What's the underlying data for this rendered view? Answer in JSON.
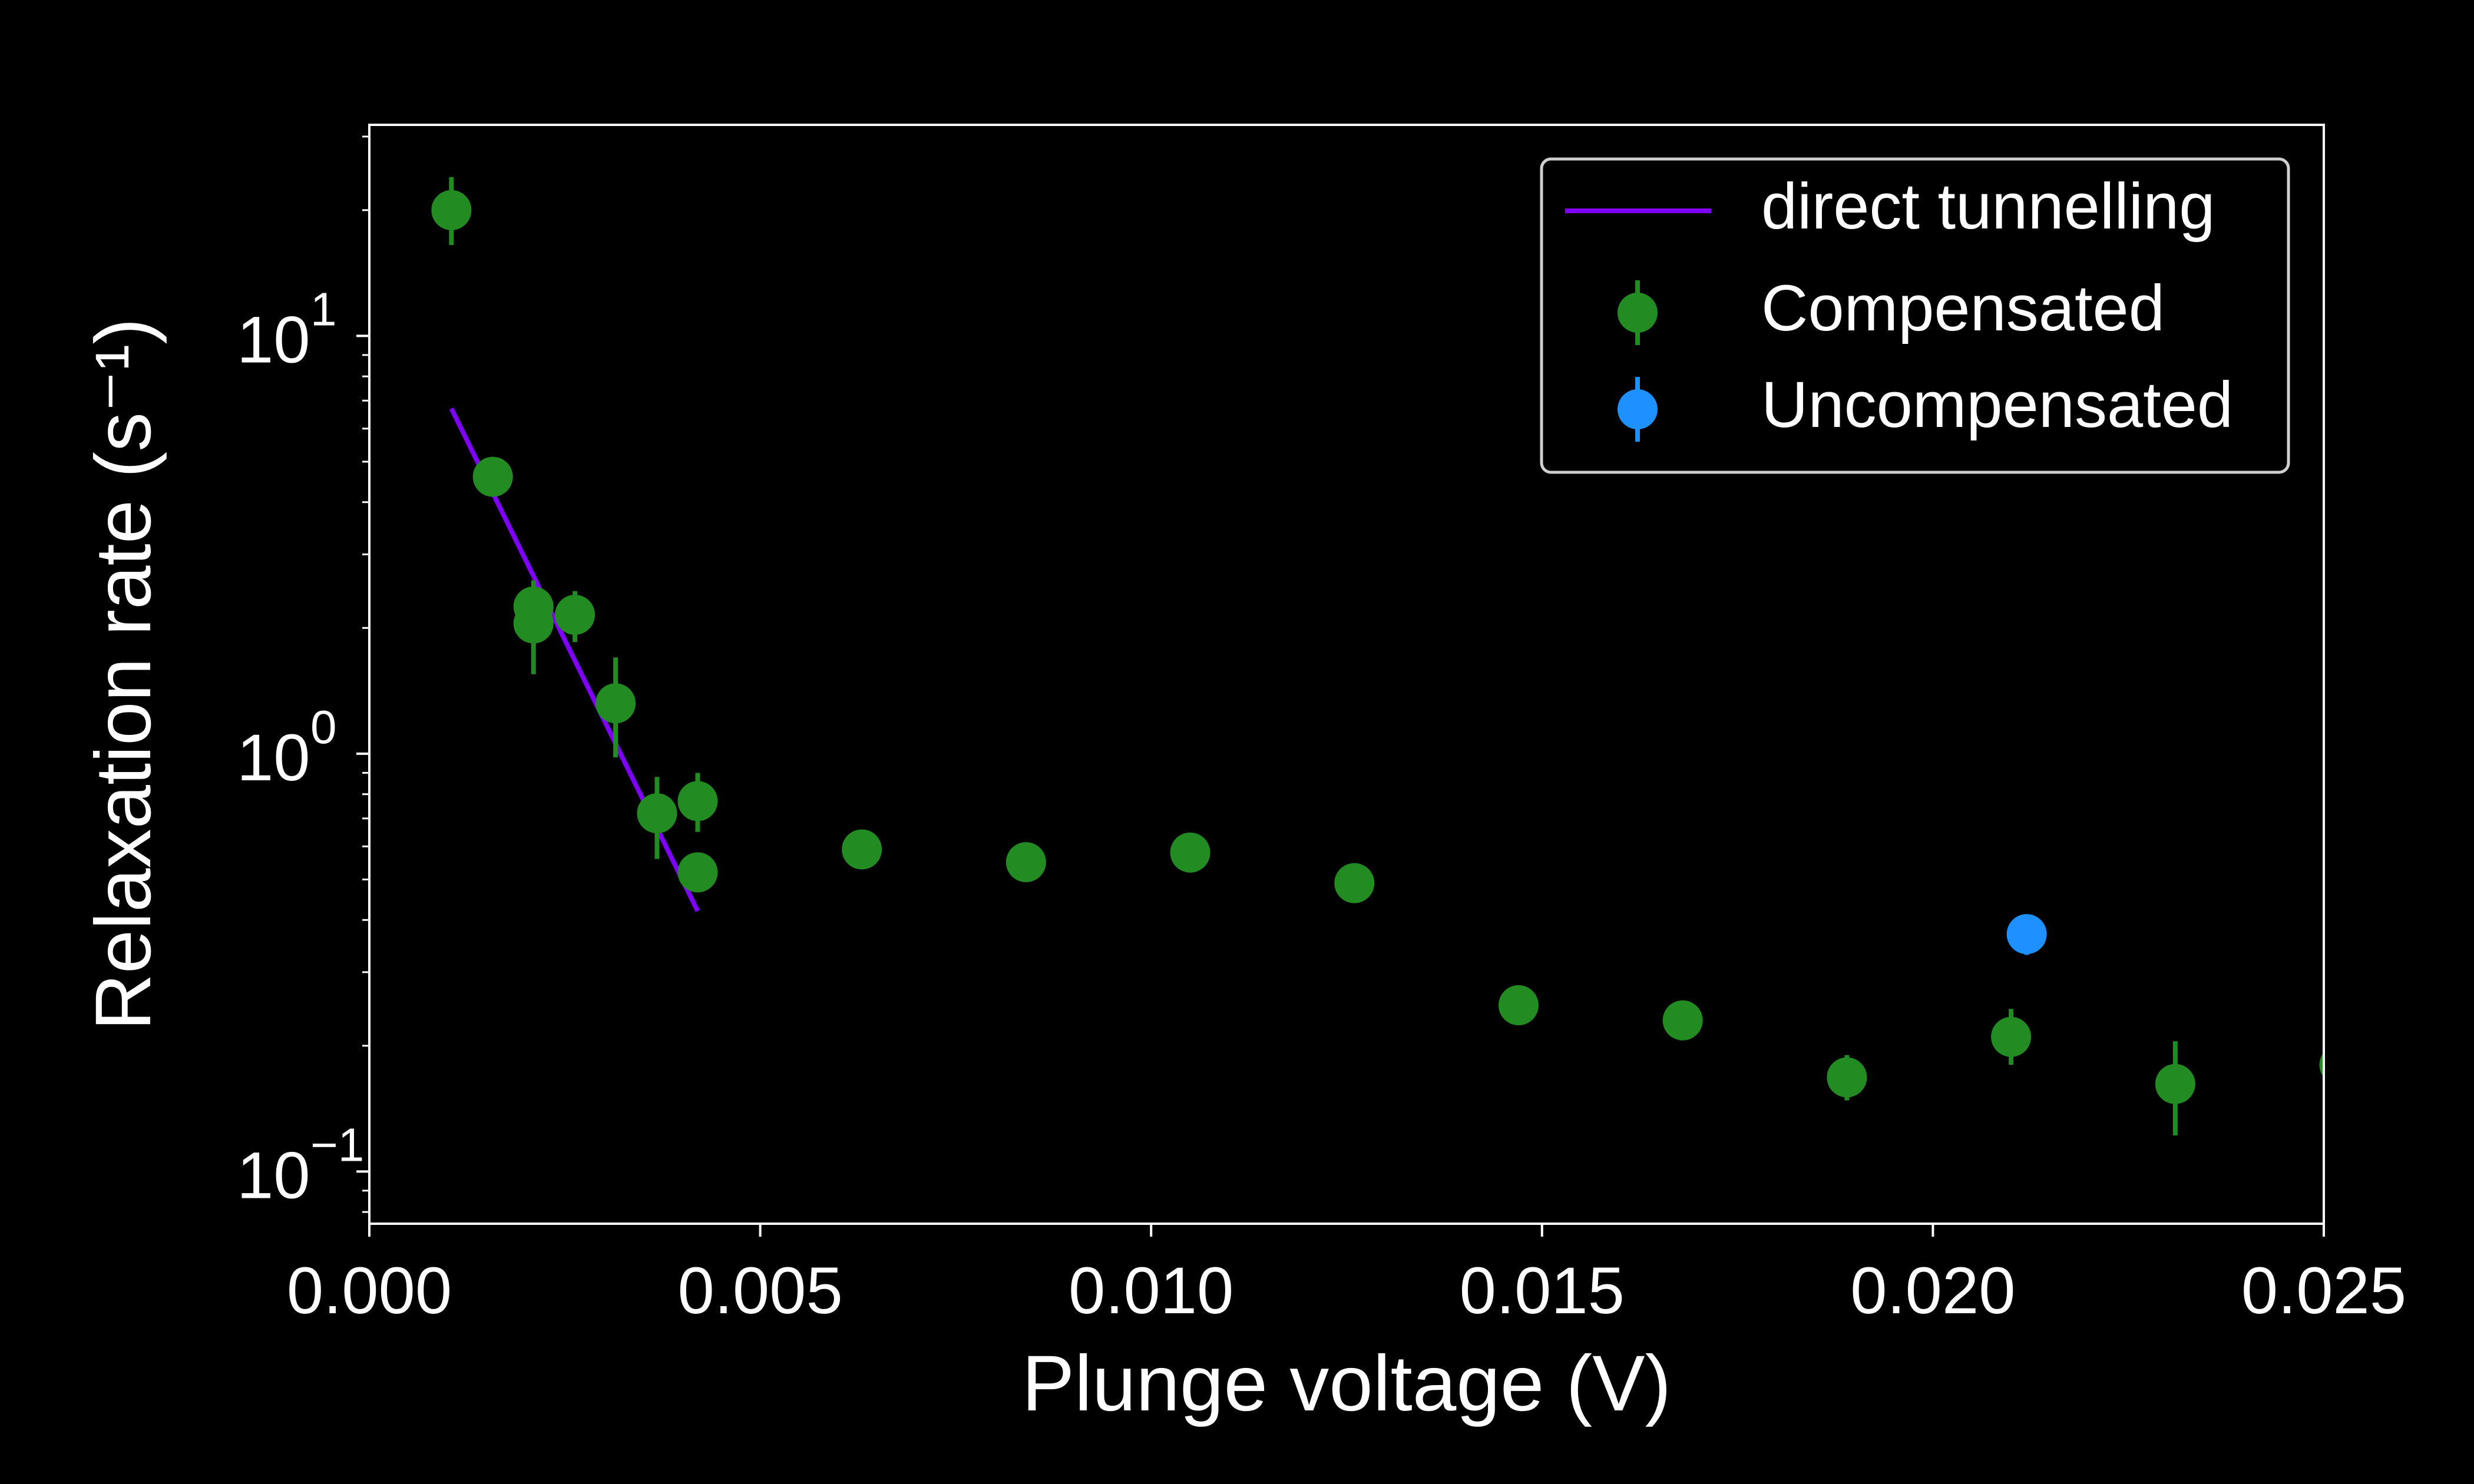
{
  "chart_data": {
    "type": "scatter",
    "xlabel": "Plunge voltage (V)",
    "ylabel": "Relaxation rate (s⁻¹)",
    "xlim": [
      0.0,
      0.025
    ],
    "ylim": [
      0.075,
      32
    ],
    "yscale": "log",
    "grid": false,
    "legend_position": "top-right",
    "background": "#000000",
    "x_ticks": [
      {
        "value": 0.0,
        "label": "0.000"
      },
      {
        "value": 0.005,
        "label": "0.005"
      },
      {
        "value": 0.01,
        "label": "0.010"
      },
      {
        "value": 0.015,
        "label": "0.015"
      },
      {
        "value": 0.02,
        "label": "0.020"
      },
      {
        "value": 0.025,
        "label": "0.025"
      }
    ],
    "y_ticks": [
      {
        "value": 0.1,
        "base": "10",
        "exp": "−1"
      },
      {
        "value": 1,
        "base": "10",
        "exp": "0"
      },
      {
        "value": 10,
        "base": "10",
        "exp": "1"
      }
    ],
    "fit": {
      "name": "direct tunnelling",
      "color": "#7f00ff",
      "x": [
        0.00105,
        0.0042
      ],
      "y": [
        6.7,
        0.42
      ]
    },
    "series": [
      {
        "name": "Compensated",
        "color": "#228b22",
        "points": [
          {
            "x": 0.00105,
            "y": 20.0,
            "yerr_lo": 16.5,
            "yerr_hi": 24.0
          },
          {
            "x": 0.00158,
            "y": 4.6,
            "yerr_lo": 4.3,
            "yerr_hi": 4.9
          },
          {
            "x": 0.0021,
            "y": 2.25,
            "yerr_lo": 2.0,
            "yerr_hi": 2.5
          },
          {
            "x": 0.0021,
            "y": 2.05,
            "yerr_lo": 1.55,
            "yerr_hi": 2.6
          },
          {
            "x": 0.00263,
            "y": 2.15,
            "yerr_lo": 1.85,
            "yerr_hi": 2.45
          },
          {
            "x": 0.00315,
            "y": 1.32,
            "yerr_lo": 0.98,
            "yerr_hi": 1.7
          },
          {
            "x": 0.00368,
            "y": 0.72,
            "yerr_lo": 0.56,
            "yerr_hi": 0.88
          },
          {
            "x": 0.0042,
            "y": 0.77,
            "yerr_lo": 0.65,
            "yerr_hi": 0.9
          },
          {
            "x": 0.0042,
            "y": 0.52,
            "yerr_lo": 0.47,
            "yerr_hi": 0.57
          },
          {
            "x": 0.0063,
            "y": 0.59,
            "yerr_lo": 0.56,
            "yerr_hi": 0.62
          },
          {
            "x": 0.0084,
            "y": 0.55,
            "yerr_lo": 0.52,
            "yerr_hi": 0.58
          },
          {
            "x": 0.0105,
            "y": 0.58,
            "yerr_lo": 0.55,
            "yerr_hi": 0.61
          },
          {
            "x": 0.0126,
            "y": 0.49,
            "yerr_lo": 0.46,
            "yerr_hi": 0.52
          },
          {
            "x": 0.0147,
            "y": 0.25,
            "yerr_lo": 0.235,
            "yerr_hi": 0.265
          },
          {
            "x": 0.0168,
            "y": 0.23,
            "yerr_lo": 0.215,
            "yerr_hi": 0.245
          },
          {
            "x": 0.0189,
            "y": 0.168,
            "yerr_lo": 0.148,
            "yerr_hi": 0.19
          },
          {
            "x": 0.021,
            "y": 0.21,
            "yerr_lo": 0.18,
            "yerr_hi": 0.245
          },
          {
            "x": 0.0231,
            "y": 0.162,
            "yerr_lo": 0.122,
            "yerr_hi": 0.205
          },
          {
            "x": 0.0252,
            "y": 0.18,
            "yerr_lo": 0.165,
            "yerr_hi": 0.195
          }
        ]
      },
      {
        "name": "Uncompensated",
        "color": "#1e90ff",
        "points": [
          {
            "x": 0.0212,
            "y": 0.37,
            "yerr_lo": 0.33,
            "yerr_hi": 0.41
          }
        ]
      }
    ]
  }
}
